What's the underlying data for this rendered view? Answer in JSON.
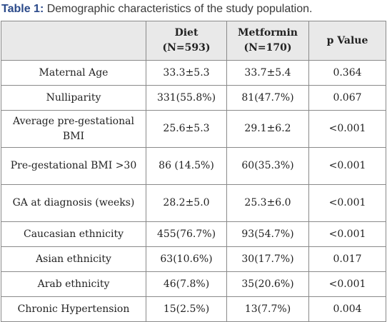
{
  "caption": {
    "label": "Table 1:",
    "text": " Demographic characteristics of the study population."
  },
  "table": {
    "header": {
      "diet": [
        "Diet",
        "(N=593)"
      ],
      "metformin": [
        "Metformin",
        "(N=170)"
      ],
      "pvalue": "p Value"
    },
    "rows": [
      {
        "label": "Maternal Age",
        "diet": "33.3±5.3",
        "metformin": "33.7±5.4",
        "p": "0.364"
      },
      {
        "label": "Nulliparity",
        "diet": "331(55.8%)",
        "metformin": "81(47.7%)",
        "p": "0.067"
      },
      {
        "label": "Average pre-gestational BMI",
        "diet": "25.6±5.3",
        "metformin": "29.1±6.2",
        "p": "<0.001"
      },
      {
        "label": "Pre-gestational BMI >30",
        "diet": "86 (14.5%)",
        "metformin": "60(35.3%)",
        "p": "<0.001"
      },
      {
        "label": "GA at diagnosis (weeks)",
        "diet": "28.2±5.0",
        "metformin": "25.3±6.0",
        "p": "<0.001"
      },
      {
        "label": "Caucasian ethnicity",
        "diet": "455(76.7%)",
        "metformin": "93(54.7%)",
        "p": "<0.001"
      },
      {
        "label": "Asian ethnicity",
        "diet": "63(10.6%)",
        "metformin": "30(17.7%)",
        "p": "0.017"
      },
      {
        "label": "Arab ethnicity",
        "diet": "46(7.8%)",
        "metformin": "35(20.6%)",
        "p": "<0.001"
      },
      {
        "label": "Chronic Hypertension",
        "diet": "15(2.5%)",
        "metformin": "13(7.7%)",
        "p": "0.004"
      }
    ]
  }
}
